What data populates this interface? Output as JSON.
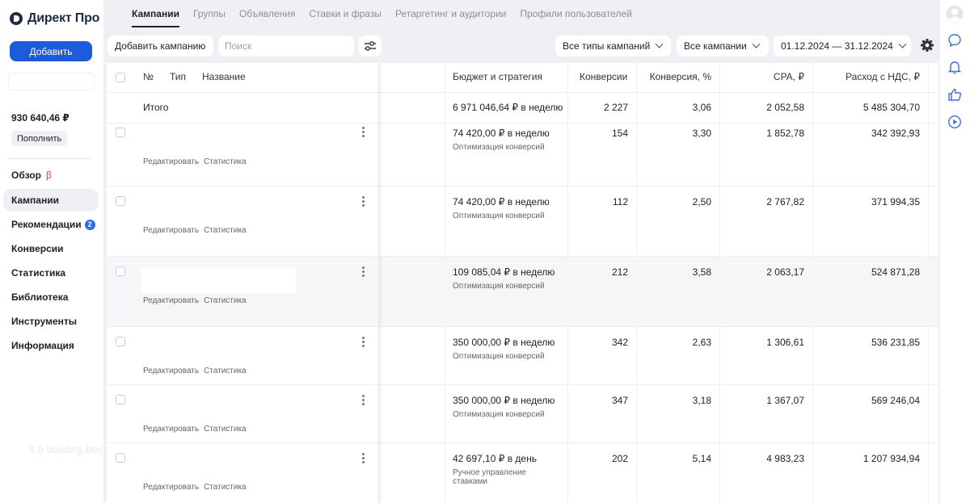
{
  "brand": {
    "logo_text": "Директ Про"
  },
  "sidebar": {
    "add_label": "Добавить",
    "balance": "930 640,46 ₽",
    "topup_label": "Пополнить",
    "items": [
      {
        "label": "Обзор",
        "beta": "β"
      },
      {
        "label": "Кампании"
      },
      {
        "label": "Рекомендации",
        "badge": "2"
      },
      {
        "label": "Конверсии"
      },
      {
        "label": "Статистика"
      },
      {
        "label": "Библиотека"
      },
      {
        "label": "Инструменты"
      },
      {
        "label": "Информация"
      }
    ],
    "ghost_text": "It a building bec"
  },
  "tabs": [
    "Кампании",
    "Группы",
    "Объявления",
    "Ставки и фразы",
    "Ретаргетинг и аудитории",
    "Профили пользователей"
  ],
  "toolbar": {
    "add_campaign": "Добавить кампанию",
    "search_placeholder": "Поиск",
    "types_filter": "Все типы кампаний",
    "campaigns_filter": "Все кампании",
    "date_range": "01.12.2024 — 31.12.2024"
  },
  "table": {
    "headers": {
      "num": "№",
      "type": "Тип",
      "name": "Название",
      "budget": "Бюджет и стратегия",
      "conv": "Конверсии",
      "conv_pct": "Конверсия, %",
      "cpa": "CPA, ₽",
      "spend": "Расход с НДС, ₽"
    },
    "total": {
      "label": "Итого",
      "budget": "6 971 046,64 ₽ в неделю",
      "conv": "2 227",
      "conv_pct": "3,06",
      "cpa": "2 052,58",
      "spend": "5 485 304,70"
    },
    "row_links": {
      "edit": "Редактировать",
      "stats": "Статистика"
    },
    "rows": [
      {
        "budget": "74 420,00 ₽ в неделю",
        "strategy": "Оптимизация конверсий",
        "conv": "154",
        "conv_pct": "3,30",
        "cpa": "1 852,78",
        "spend": "342 392,93"
      },
      {
        "budget": "74 420,00 ₽ в неделю",
        "strategy": "Оптимизация конверсий",
        "conv": "112",
        "conv_pct": "2,50",
        "cpa": "2 767,82",
        "spend": "371 994,35"
      },
      {
        "budget": "109 085,04 ₽ в неделю",
        "strategy": "Оптимизация конверсий",
        "conv": "212",
        "conv_pct": "3,58",
        "cpa": "2 063,17",
        "spend": "524 871,28"
      },
      {
        "budget": "350 000,00 ₽ в неделю",
        "strategy": "Оптимизация конверсий",
        "conv": "342",
        "conv_pct": "2,63",
        "cpa": "1 306,61",
        "spend": "536 231,85"
      },
      {
        "budget": "350 000,00 ₽ в неделю",
        "strategy": "Оптимизация конверсий",
        "conv": "347",
        "conv_pct": "3,18",
        "cpa": "1 367,07",
        "spend": "569 246,04"
      },
      {
        "budget": "42 697,10 ₽ в день",
        "strategy_line1": "Ручное управление",
        "strategy_line2": "ставками",
        "conv": "202",
        "conv_pct": "5,14",
        "cpa": "4 983,23",
        "spend": "1 207 934,94"
      }
    ]
  },
  "colors": {
    "accent": "#1c5bd9",
    "badge": "#2e6be6",
    "beta": "#d9433b",
    "background": "#eef0f3"
  },
  "icons": {
    "rail": [
      "avatar-icon",
      "chat-icon",
      "bell-icon",
      "thumbs-up-icon",
      "play-icon"
    ],
    "toolbar": [
      "filter-sliders-icon",
      "gear-icon"
    ]
  }
}
